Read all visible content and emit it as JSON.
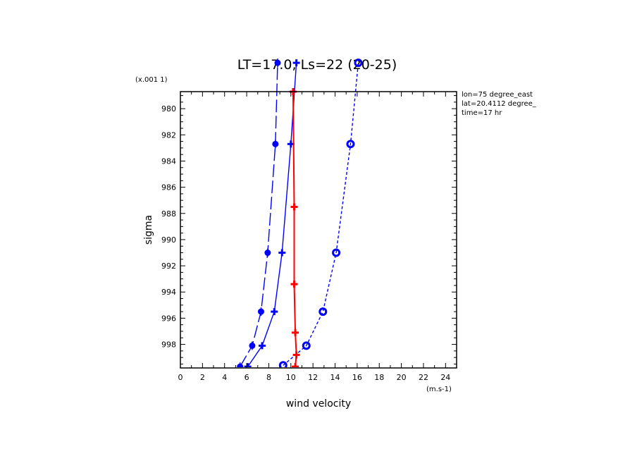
{
  "chart_data": {
    "type": "line",
    "title": "LT=17.0, Ls=22 (20-25)",
    "xlabel": "wind velocity",
    "x_unit_label": "(m.s-1)",
    "ylabel": "sigma",
    "y_unit_label": "(x.001 1)",
    "info_lines": [
      "lon=75 degree_east",
      "lat=20.4112 degree_",
      "time=17 hr"
    ],
    "xlim": [
      0,
      25
    ],
    "ylim": [
      999.8,
      978.7
    ],
    "x_ticks": [
      "0",
      "2",
      "4",
      "6",
      "8",
      "10",
      "12",
      "14",
      "16",
      "18",
      "20",
      "22",
      "24"
    ],
    "y_ticks": [
      "980",
      "982",
      "984",
      "986",
      "988",
      "990",
      "992",
      "994",
      "996",
      "998"
    ],
    "colors": {
      "blue": "#0000ff",
      "red": "#ff0000"
    },
    "series": [
      {
        "line_style": "long-dash",
        "marker": "filled-circle",
        "color": "#0000ff",
        "points": [
          [
            5.4,
            999.7
          ],
          [
            6.5,
            998.1
          ],
          [
            7.3,
            995.5
          ],
          [
            7.9,
            991.0
          ],
          [
            8.6,
            982.7
          ],
          [
            8.8,
            976.5
          ]
        ]
      },
      {
        "line_style": "solid",
        "marker": "plus",
        "color": "#0000ff",
        "points": [
          [
            6.1,
            999.7
          ],
          [
            7.4,
            998.1
          ],
          [
            8.5,
            995.5
          ],
          [
            9.2,
            991.0
          ],
          [
            10.0,
            982.7
          ],
          [
            10.5,
            976.5
          ]
        ]
      },
      {
        "line_style": "short-dash",
        "marker": "ring",
        "color": "#0000ff",
        "points": [
          [
            9.3,
            999.6
          ],
          [
            11.4,
            998.1
          ],
          [
            12.9,
            995.5
          ],
          [
            14.1,
            991.0
          ],
          [
            15.4,
            982.7
          ],
          [
            16.1,
            976.5
          ]
        ]
      },
      {
        "line_style": "solid",
        "marker": "plus",
        "color": "#ff0000",
        "points": [
          [
            10.4,
            999.7
          ],
          [
            10.5,
            998.8
          ],
          [
            10.4,
            997.1
          ],
          [
            10.3,
            993.4
          ],
          [
            10.3,
            987.5
          ],
          [
            10.2,
            978.7
          ]
        ]
      }
    ]
  }
}
